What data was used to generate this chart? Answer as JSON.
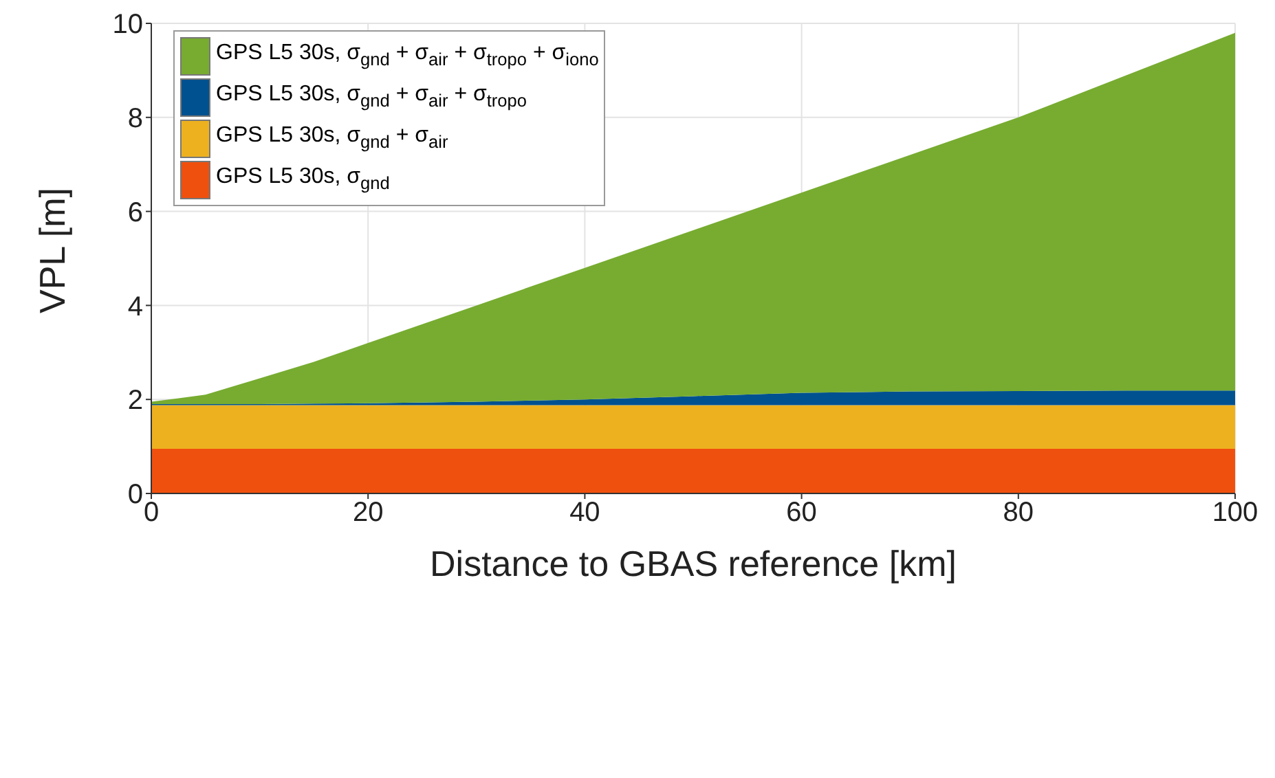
{
  "chart_data": {
    "type": "area",
    "stacked": true,
    "xlabel": "Distance to GBAS reference [km]",
    "ylabel": "VPL [m]",
    "x": [
      0,
      5,
      10,
      15,
      20,
      30,
      40,
      50,
      60,
      70,
      80,
      90,
      100
    ],
    "series": [
      {
        "name": "GPS L5 30s, σ$_{gnd}$",
        "color": "#f0500e",
        "values": [
          0.95,
          0.95,
          0.95,
          0.95,
          0.95,
          0.95,
          0.95,
          0.95,
          0.95,
          0.95,
          0.95,
          0.95,
          0.95
        ]
      },
      {
        "name": "GPS L5 30s, σ$_{gnd}$ + σ$_{air}$",
        "color": "#edb120",
        "values": [
          0.93,
          0.93,
          0.93,
          0.93,
          0.93,
          0.93,
          0.93,
          0.93,
          0.93,
          0.93,
          0.93,
          0.93,
          0.93
        ]
      },
      {
        "name": "GPS L5 30s, σ$_{gnd}$ + σ$_{air}$ + σ$_{tropo}$",
        "color": "#005190",
        "values": [
          0.02,
          0.02,
          0.02,
          0.03,
          0.04,
          0.07,
          0.12,
          0.19,
          0.26,
          0.29,
          0.3,
          0.31,
          0.31
        ]
      },
      {
        "name": "GPS L5 30s, σ$_{gnd}$ + σ$_{air}$ + σ$_{tropo}$ + σ$_{iono}$",
        "color": "#77ac30",
        "values": [
          0.05,
          0.2,
          0.55,
          0.89,
          1.28,
          2.05,
          2.8,
          3.53,
          4.26,
          5.03,
          5.82,
          6.71,
          7.61
        ]
      }
    ],
    "xlim": [
      0,
      100
    ],
    "xticks": [
      0,
      20,
      40,
      60,
      80,
      100
    ],
    "ylim": [
      0,
      10
    ],
    "yticks": [
      0,
      2,
      4,
      6,
      8,
      10
    ],
    "grid": true,
    "legend": "top left"
  }
}
